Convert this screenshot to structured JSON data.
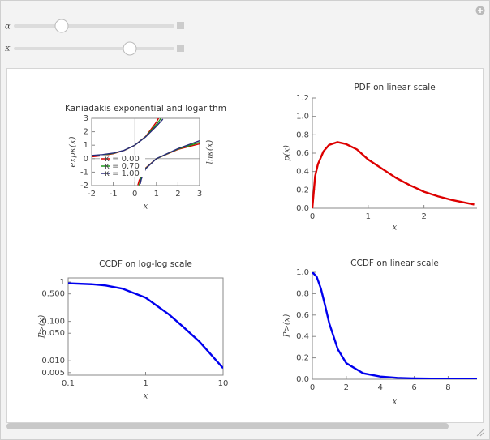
{
  "controls": [
    {
      "label": "α"
    },
    {
      "label": "κ"
    }
  ],
  "chart_data": [
    {
      "type": "line",
      "title": "Kaniadakis exponential and logarithm",
      "xlabel": "x",
      "ylabel": "expκ(x)",
      "y2label": "lnκ(x)",
      "xlim": [
        -2,
        3
      ],
      "ylim": [
        -2,
        3
      ],
      "xticks": [
        -2,
        -1,
        0,
        1,
        2,
        3
      ],
      "yticks": [
        -2,
        -1,
        0,
        1,
        2,
        3
      ],
      "frame": true,
      "origin_axes": true,
      "legend": "lower left",
      "series": [
        {
          "name": "κ = 0.00",
          "color": "#d40000",
          "x": [
            -2,
            -1.5,
            -1,
            -0.5,
            0,
            0.5,
            1,
            1.1
          ],
          "values": [
            0.135,
            0.223,
            0.368,
            0.607,
            1,
            1.649,
            2.718,
            3.004
          ],
          "ln_x": [
            0.14,
            0.2,
            0.5,
            1,
            2,
            3
          ],
          "ln_values": [
            -1.966,
            -1.609,
            -0.693,
            0,
            0.693,
            1.099
          ]
        },
        {
          "name": "κ = 0.70",
          "color": "#1a9a1a",
          "x": [
            -2,
            -1.5,
            -1,
            -0.5,
            0,
            0.5,
            1,
            1.15,
            1.2
          ],
          "values": [
            0.197,
            0.27,
            0.394,
            0.612,
            1,
            1.633,
            2.54,
            2.864,
            2.977
          ],
          "ln_x": [
            0.2,
            0.3,
            0.5,
            1,
            2,
            3
          ],
          "ln_values": [
            -1.972,
            -1.352,
            -0.721,
            0,
            0.721,
            1.21
          ]
        },
        {
          "name": "κ = 1.00",
          "color": "#2a2a7a",
          "x": [
            -2,
            -1.5,
            -1,
            -0.5,
            0,
            0.5,
            1,
            1.3
          ],
          "values": [
            0.236,
            0.303,
            0.414,
            0.618,
            1,
            1.618,
            2.414,
            2.94
          ],
          "ln_x": [
            0.25,
            0.3,
            0.5,
            1,
            2,
            3
          ],
          "ln_values": [
            -1.875,
            -1.517,
            -0.75,
            0,
            0.75,
            1.333
          ]
        }
      ]
    },
    {
      "type": "line",
      "title": "PDF on linear scale",
      "xlabel": "x",
      "ylabel": "p(x)",
      "xlim": [
        0,
        2.95
      ],
      "ylim": [
        0,
        1.2
      ],
      "xticks": [
        0,
        1,
        2
      ],
      "yticks": [
        {
          "value": 0,
          "label": "0.0"
        },
        {
          "value": 0.2,
          "label": "0.2"
        },
        {
          "value": 0.4,
          "label": "0.4"
        },
        {
          "value": 0.6,
          "label": "0.6"
        },
        {
          "value": 0.8,
          "label": "0.8"
        },
        {
          "value": 1,
          "label": "1.0"
        },
        {
          "value": 1.2,
          "label": "1.2"
        }
      ],
      "frame": false,
      "series": [
        {
          "color": "#dd0000",
          "x": [
            0,
            0.05,
            0.1,
            0.2,
            0.3,
            0.45,
            0.6,
            0.8,
            1,
            1.25,
            1.5,
            1.75,
            2,
            2.25,
            2.5,
            2.9
          ],
          "values": [
            0,
            0.35,
            0.48,
            0.62,
            0.69,
            0.72,
            0.7,
            0.64,
            0.53,
            0.43,
            0.33,
            0.25,
            0.18,
            0.13,
            0.09,
            0.04
          ]
        }
      ]
    },
    {
      "type": "line",
      "title": "CCDF on log-log scale",
      "xlabel": "x",
      "ylabel": "P>(x)",
      "xlog": true,
      "ylog": true,
      "xlim": [
        0.1,
        10
      ],
      "ylim": [
        0.0043,
        1.27
      ],
      "xticks": [
        0.1,
        1,
        10
      ],
      "yticks": [
        0.005,
        {
          "value": 0.01,
          "label": "0.010"
        },
        {
          "value": 0.05,
          "label": "0.050"
        },
        {
          "value": 0.1,
          "label": "0.100"
        },
        {
          "value": 0.5,
          "label": "0.500"
        },
        1
      ],
      "frame": true,
      "series": [
        {
          "color": "#0000ee",
          "x": [
            0.1,
            0.2,
            0.3,
            0.5,
            1,
            2,
            3,
            5,
            10
          ],
          "values": [
            0.93,
            0.88,
            0.82,
            0.68,
            0.4,
            0.15,
            0.075,
            0.03,
            0.0065
          ]
        }
      ]
    },
    {
      "type": "line",
      "title": "CCDF on linear scale",
      "xlabel": "x",
      "ylabel": "P>(x)",
      "xlim": [
        0,
        9.7
      ],
      "ylim": [
        0,
        1
      ],
      "xticks": [
        0,
        2,
        4,
        6,
        8
      ],
      "yticks": [
        {
          "value": 0,
          "label": "0.0"
        },
        {
          "value": 0.2,
          "label": "0.2"
        },
        {
          "value": 0.4,
          "label": "0.4"
        },
        {
          "value": 0.6,
          "label": "0.6"
        },
        {
          "value": 0.8,
          "label": "0.8"
        },
        {
          "value": 1,
          "label": "1.0"
        }
      ],
      "frame": false,
      "series": [
        {
          "color": "#0000ee",
          "x": [
            0,
            0.25,
            0.5,
            0.75,
            1,
            1.5,
            2,
            3,
            4,
            5,
            6,
            8,
            9.7
          ],
          "values": [
            1,
            0.96,
            0.85,
            0.69,
            0.52,
            0.28,
            0.15,
            0.055,
            0.025,
            0.013,
            0.008,
            0.004,
            0.002
          ]
        }
      ]
    }
  ]
}
